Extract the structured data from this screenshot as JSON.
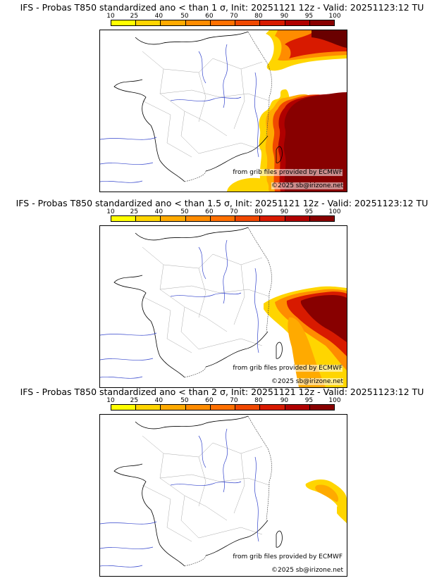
{
  "colorbar": {
    "labels": [
      "10",
      "25",
      "40",
      "50",
      "60",
      "70",
      "80",
      "90",
      "95",
      "100"
    ],
    "colors": [
      "#ffff00",
      "#ffd500",
      "#ffaa00",
      "#ff8c00",
      "#ff7000",
      "#f04800",
      "#d81a00",
      "#b00000",
      "#880000",
      "#6a0000"
    ]
  },
  "credits": {
    "grib": "from grib files provided by ECMWF",
    "copyright": "©2025 sb@irizone.net"
  },
  "panels": [
    {
      "title": "IFS - Probas T850  standardized ano < than 1 σ, Init: 20251121 12z - Valid: 20251123:12 TU",
      "threshold": "1 σ"
    },
    {
      "title": "IFS - Probas T850  standardized ano < than 1.5 σ, Init: 20251121 12z - Valid: 20251123:12 TU",
      "threshold": "1.5 σ"
    },
    {
      "title": "IFS - Probas T850  standardized ano < than 2 σ, Init: 20251121 12z - Valid: 20251123:12 TU",
      "threshold": "2 σ"
    }
  ]
}
